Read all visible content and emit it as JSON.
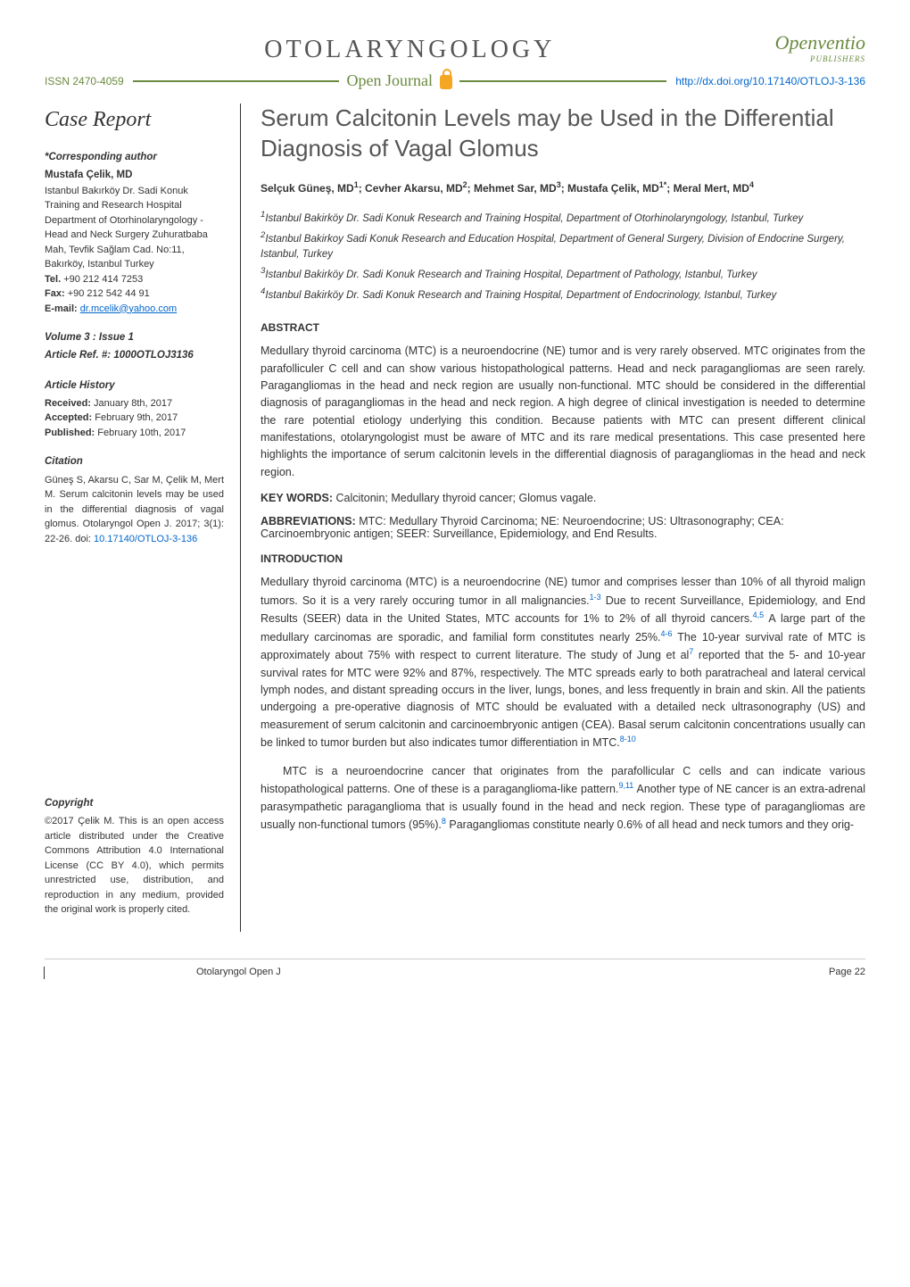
{
  "journal_name": "OTOLARYNGOLOGY",
  "publisher": "Openventio",
  "publisher_sub": "PUBLISHERS",
  "issn": "ISSN 2470-4059",
  "open_journal_label": "Open Journal",
  "doi": "http://dx.doi.org/10.17140/OTLOJ-3-136",
  "case_report_label": "Case Report",
  "sidebar": {
    "corresponding_label": "*Corresponding author",
    "author_name": "Mustafa Çelik, MD",
    "author_affiliation": "Istanbul Bakırköy Dr. Sadi Konuk Training and Research Hospital Department of Otorhinolaryngology - Head and Neck Surgery Zuhuratbaba Mah, Tevfik Sağlam Cad. No:11, Bakırköy, Istanbul Turkey",
    "tel_label": "Tel.",
    "tel": "+90 212 414 7253",
    "fax_label": "Fax:",
    "fax": "+90 212 542 44 91",
    "email_label": "E-mail:",
    "email": "dr.mcelik@yahoo.com",
    "volume_issue": "Volume 3 : Issue 1",
    "article_ref": "Article Ref. #: 1000OTLOJ3136",
    "history_label": "Article History",
    "received_label": "Received:",
    "received": "January 8th, 2017",
    "accepted_label": "Accepted:",
    "accepted": "February 9th, 2017",
    "published_label": "Published:",
    "published": "February 10th, 2017",
    "citation_label": "Citation",
    "citation_text": "Güneş S, Akarsu C, Sar M, Çelik M, Mert M. Serum calcitonin levels may be used in the differential diagnosis of vagal glomus. Otolaryngol Open J. 2017; 3(1): 22-26. doi: ",
    "citation_doi": "10.17140/OTLOJ-3-136",
    "copyright_label": "Copyright",
    "copyright_text": "©2017 Çelik M. This is an open access article distributed under the Creative Commons Attribution 4.0 International License (CC BY 4.0), which permits unrestricted use, distribution, and reproduction in any medium, provided the original work is properly cited."
  },
  "article": {
    "title": "Serum Calcitonin Levels may be Used in the Differential Diagnosis of Vagal Glomus",
    "authors_html": "Selçuk Güneş, MD<sup>1</sup>; Cevher Akarsu, MD<sup>2</sup>; Mehmet Sar, MD<sup>3</sup>; Mustafa Çelik, MD<sup>1*</sup>; Meral Mert, MD<sup>4</sup>",
    "affiliations": [
      "<sup>1</sup>Istanbul Bakirköy Dr. Sadi Konuk Research and Training Hospital, Department of Otorhinolaryngology, Istanbul, Turkey",
      "<sup>2</sup>Istanbul Bakirkoy Sadi Konuk Research and Education Hospital, Department of General Surgery, Division of Endocrine Surgery, Istanbul, Turkey",
      "<sup>3</sup>Istanbul Bakirköy Dr. Sadi Konuk Research and Training Hospital, Department of Pathology, Istanbul, Turkey",
      "<sup>4</sup>Istanbul Bakirköy Dr. Sadi Konuk Research and Training Hospital, Department of Endocrinology, Istanbul, Turkey"
    ],
    "abstract_head": "ABSTRACT",
    "abstract_text": "Medullary thyroid carcinoma (MTC) is a neuroendocrine (NE) tumor and is very rarely observed. MTC originates from the parafolliculer C cell and can show various histopathological patterns. Head and neck paragangliomas are seen rarely. Paragangliomas in the head and neck region are usually non-functional. MTC should be considered in the differential diagnosis of paragangliomas in the head and neck region. A high degree of clinical investigation is needed to determine the rare potential etiology underlying this condition. Because patients with MTC can present different clinical manifestations, otolaryngologist must be aware of MTC and its rare medical presentations. This case presented here highlights the importance of serum calcitonin levels in the differential diagnosis of paragangliomas in the head and neck region.",
    "keywords_label": "KEY WORDS:",
    "keywords": "Calcitonin; Medullary thyroid cancer; Glomus vagale.",
    "abbrev_label": "ABBREVIATIONS:",
    "abbrev": "MTC: Medullary Thyroid Carcinoma; NE: Neuroendocrine; US: Ultrasonography; CEA: Carcinoembryonic antigen; SEER: Surveillance, Epidemiology, and End Results.",
    "intro_head": "INTRODUCTION",
    "intro_p1": "Medullary thyroid carcinoma (MTC) is a neuroendocrine (NE) tumor and comprises lesser than 10% of all thyroid malign tumors. So it is a very rarely occuring tumor in all malignancies.<sup>1-3</sup> Due to recent Surveillance, Epidemiology, and End Results (SEER) data in the United States, MTC accounts for 1% to 2% of all thyroid cancers.<sup>4,5</sup> A large part of the medullary carcinomas are sporadic, and familial form constitutes nearly 25%.<sup>4-6</sup> The 10-year survival rate of MTC is approximately about 75% with respect to current literature. The study of Jung et al<sup>7</sup> reported that the 5- and 10-year survival rates for MTC were 92% and 87%, respectively. The MTC spreads early to both paratracheal and lateral cervical lymph nodes, and distant spreading occurs in the liver, lungs, bones, and less frequently in brain and skin. All the patients undergoing a pre-operative diagnosis of MTC should be evaluated with a detailed neck ultrasonography (US) and measurement of serum calcitonin and carcinoembryonic antigen (CEA). Basal serum calcitonin concentrations usually can be linked to tumor burden but also indicates tumor differentiation in MTC.<sup>8-10</sup>",
    "intro_p2": "MTC is a neuroendocrine cancer that originates from the parafollicular C cells and can indicate various histopathological patterns. One of these is a paraganglioma-like pattern.<sup>9,11</sup> Another type of NE cancer is an extra-adrenal parasympathetic paraganglioma that is usually found in the head and neck region. These type of paragangliomas are usually non-functional tumors (95%).<sup>8</sup> Paragangliomas constitute nearly 0.6% of all head and neck tumors and they orig-"
  },
  "footer": {
    "left": "Otolaryngol Open J",
    "right": "Page 22"
  }
}
